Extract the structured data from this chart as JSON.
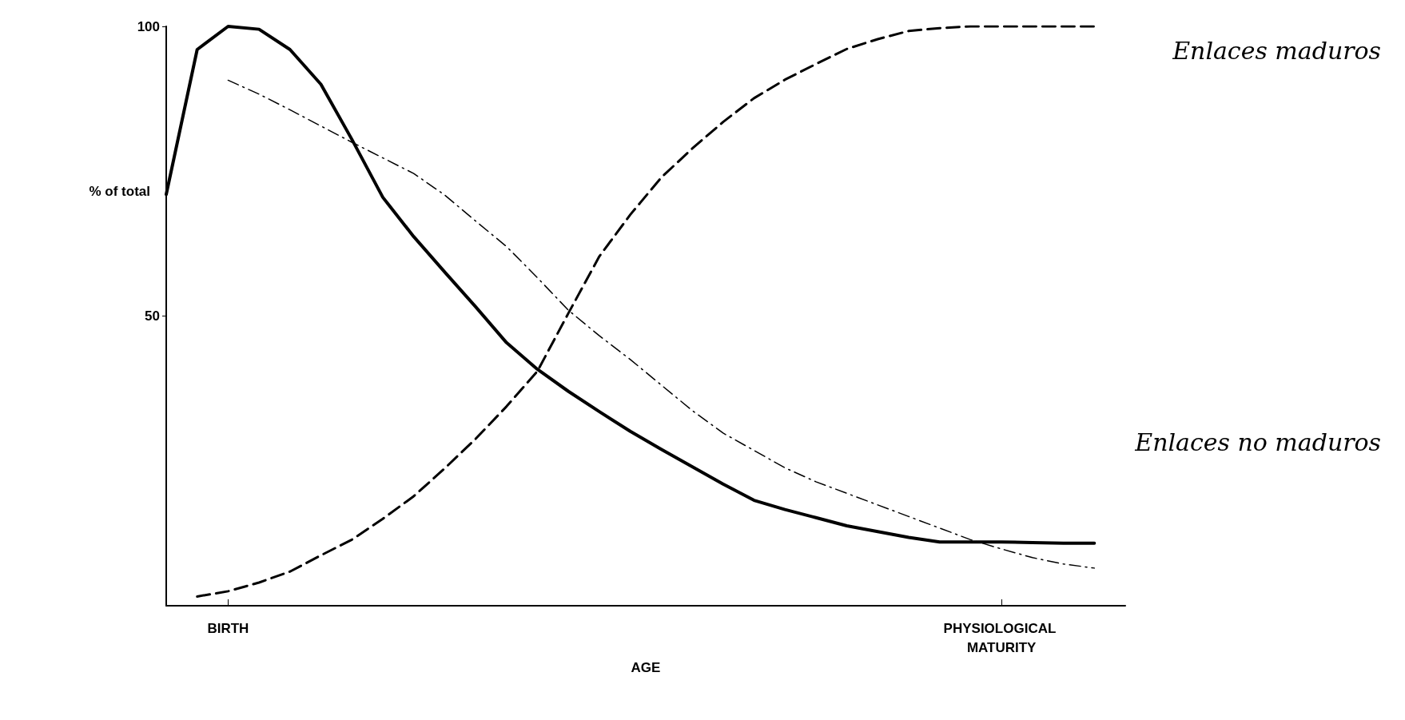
{
  "chart_data": {
    "type": "line",
    "xlabel": "AGE",
    "ylabel": "% of total",
    "categories": [
      null,
      null,
      "BIRTH",
      null,
      null,
      null,
      null,
      null,
      null,
      null,
      null,
      null,
      null,
      null,
      null,
      null,
      null,
      null,
      null,
      null,
      null,
      null,
      null,
      null,
      null,
      null,
      null,
      "PHYSIOLOGICAL MATURITY",
      null,
      null,
      null,
      null
    ],
    "ylim": [
      0,
      100
    ],
    "yticks": [
      50,
      100
    ],
    "grid": false,
    "marker": "none",
    "annotations": [
      "Enlaces maduros",
      "Enlaces no maduros"
    ],
    "series": [
      {
        "color": "#000000",
        "line_style": "solid",
        "values": [
          71,
          96,
          100,
          99.5,
          96,
          90,
          80.5,
          70.5,
          63.7,
          57.6,
          51.6,
          45.4,
          40.8,
          37,
          33.5,
          30.1,
          27,
          24,
          21,
          18.2,
          16.6,
          15.2,
          13.8,
          12.8,
          11.8,
          11,
          11,
          11,
          10.9,
          10.8,
          10.8,
          null
        ]
      },
      {
        "color": "#000000",
        "line_style": "dashed",
        "values": [
          null,
          1.6,
          2.5,
          4,
          5.9,
          8.7,
          11.4,
          15,
          18.9,
          23.7,
          28.8,
          34.4,
          40.5,
          50.5,
          60.3,
          67.5,
          73.9,
          78.9,
          83.5,
          87.6,
          90.8,
          93.5,
          96.1,
          97.8,
          99.2,
          99.7,
          100,
          100,
          100,
          100,
          100,
          null
        ]
      },
      {
        "color": "#000000",
        "line_style": "dotted",
        "values": [
          null,
          null,
          90.7,
          88.3,
          85.6,
          82.8,
          80,
          77.3,
          74.6,
          70.9,
          66.4,
          62,
          56.6,
          51,
          46.6,
          42.5,
          38.1,
          33.7,
          29.8,
          26.8,
          23.8,
          21.4,
          19.4,
          17.4,
          15.4,
          13.4,
          11.4,
          9.8,
          8.3,
          7.2,
          6.5,
          null
        ]
      }
    ]
  }
}
